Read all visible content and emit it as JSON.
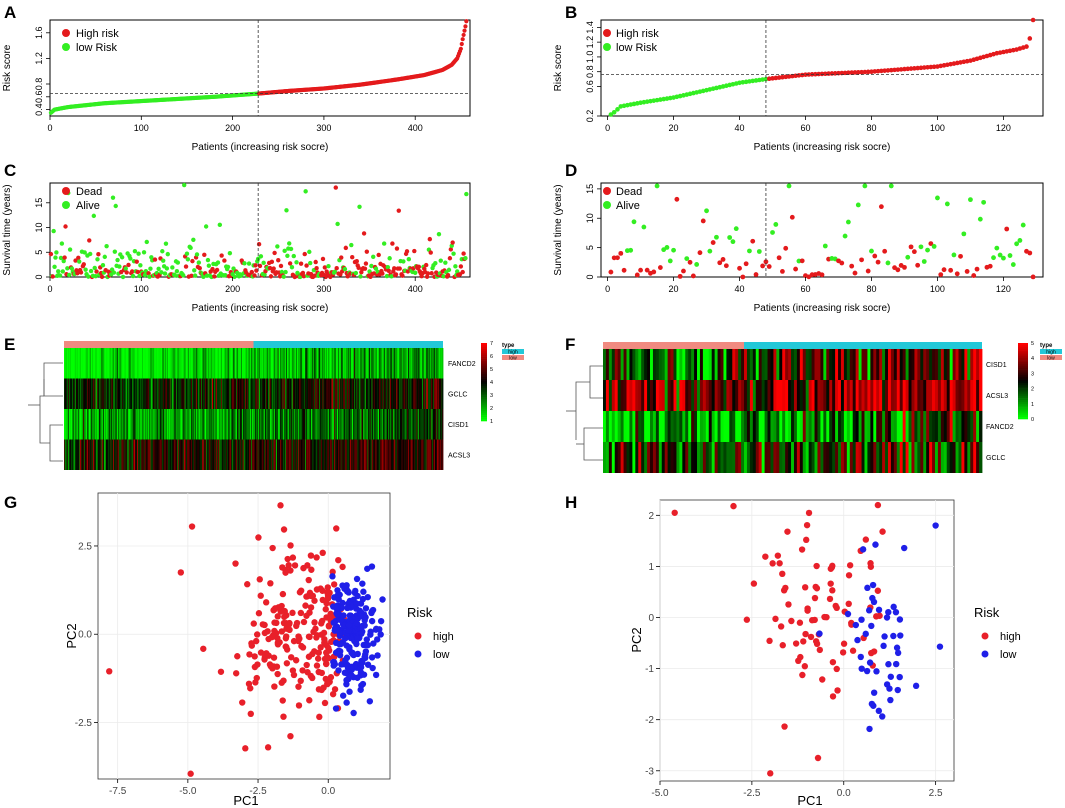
{
  "colors": {
    "high": "#e41a1c",
    "low": "#33ee22",
    "dead": "#e41a1c",
    "alive": "#33ee22",
    "pca_high": "#e8202a",
    "pca_low": "#1f1fe8",
    "type_high": "#22c8d8",
    "type_low": "#f08a80"
  },
  "panels": {
    "A": {
      "label": "A",
      "legend": [
        "High risk",
        "low Risk"
      ]
    },
    "B": {
      "label": "B",
      "legend": [
        "High risk",
        "low Risk"
      ]
    },
    "C": {
      "label": "C",
      "legend": [
        "Dead",
        "Alive"
      ]
    },
    "D": {
      "label": "D",
      "legend": [
        "Dead",
        "Alive"
      ]
    },
    "E": {
      "label": "E",
      "legend_title": "type",
      "legend_entries": [
        "high",
        "low"
      ]
    },
    "F": {
      "label": "F",
      "legend_title": "type",
      "legend_entries": [
        "high",
        "low"
      ]
    },
    "G": {
      "label": "G",
      "legend_title": "Risk",
      "legend_entries": [
        "high",
        "low"
      ]
    },
    "H": {
      "label": "H",
      "legend_title": "Risk",
      "legend_entries": [
        "high",
        "low"
      ]
    }
  },
  "chart_data": [
    {
      "id": "A",
      "type": "scatter",
      "title": "",
      "xlabel": "Patients (increasing risk socre)",
      "ylabel": "Risk score",
      "xlim": [
        0,
        460
      ],
      "ylim": [
        0.3,
        1.8
      ],
      "xticks": [
        "0",
        "100",
        "200",
        "300",
        "400"
      ],
      "yticks": [
        "0.4",
        "0.6",
        "0.8",
        "1.2",
        "1.6"
      ],
      "n": 456,
      "cutoff_index": 228,
      "cutoff_score": 0.65,
      "anchors_x": [
        1,
        5,
        20,
        60,
        120,
        180,
        228,
        260,
        300,
        340,
        380,
        410,
        430,
        440,
        446,
        450,
        452,
        455,
        456
      ],
      "anchors_y": [
        0.35,
        0.4,
        0.44,
        0.5,
        0.55,
        0.6,
        0.65,
        0.69,
        0.73,
        0.79,
        0.87,
        0.94,
        1.02,
        1.1,
        1.2,
        1.35,
        1.5,
        1.7,
        1.78
      ]
    },
    {
      "id": "B",
      "type": "scatter",
      "title": "",
      "xlabel": "Patients (increasing risk socre)",
      "ylabel": "Risk score",
      "xlim": [
        -2,
        132
      ],
      "ylim": [
        0.2,
        1.5
      ],
      "xticks": [
        "0",
        "20",
        "40",
        "60",
        "80",
        "100",
        "120"
      ],
      "yticks": [
        "0.2",
        "0.6",
        "0.8",
        "1.0",
        "1.2",
        "1.4"
      ],
      "n": 129,
      "cutoff_index": 48,
      "cutoff_score": 0.76,
      "anchors_x": [
        1,
        2,
        4,
        10,
        20,
        30,
        40,
        48,
        60,
        80,
        100,
        110,
        118,
        124,
        127,
        128,
        129
      ],
      "anchors_y": [
        0.22,
        0.25,
        0.33,
        0.38,
        0.45,
        0.55,
        0.65,
        0.7,
        0.76,
        0.8,
        0.87,
        0.95,
        1.05,
        1.1,
        1.14,
        1.25,
        1.5
      ]
    },
    {
      "id": "C",
      "type": "scatter",
      "title": "",
      "xlabel": "Patients (increasing risk socre)",
      "ylabel": "Survival time (years)",
      "xlim": [
        0,
        460
      ],
      "ylim": [
        0,
        19
      ],
      "xticks": [
        "0",
        "100",
        "200",
        "300",
        "400"
      ],
      "yticks": [
        "0",
        "5",
        "10",
        "15"
      ],
      "n": 456,
      "cutoff_index": 228,
      "seed": 7
    },
    {
      "id": "D",
      "type": "scatter",
      "title": "",
      "xlabel": "Patients (increasing risk socre)",
      "ylabel": "Survival time (years)",
      "xlim": [
        -2,
        132
      ],
      "ylim": [
        0,
        16
      ],
      "xticks": [
        "0",
        "20",
        "40",
        "60",
        "80",
        "100",
        "120"
      ],
      "yticks": [
        "0",
        "5",
        "10",
        "15"
      ],
      "n": 129,
      "cutoff_index": 48,
      "seed": 11
    },
    {
      "id": "E",
      "type": "heatmap",
      "rows": [
        "FANCD2",
        "GCLC",
        "CISD1",
        "ACSL3"
      ],
      "scale_ticks": [
        "1",
        "2",
        "3",
        "4",
        "5",
        "6",
        "7"
      ],
      "n_cols": 456,
      "low_fraction": 0.5,
      "row_means": [
        1.5,
        3.8,
        2.5,
        4.3
      ],
      "seed": 3
    },
    {
      "id": "F",
      "type": "heatmap",
      "rows": [
        "CISD1",
        "ACSL3",
        "FANCD2",
        "GCLC"
      ],
      "scale_ticks": [
        "0",
        "1",
        "2",
        "3",
        "4",
        "5"
      ],
      "n_cols": 129,
      "low_fraction": 0.37,
      "row_means": [
        2.8,
        3.9,
        1.2,
        2.4
      ],
      "seed": 5
    },
    {
      "id": "G",
      "type": "scatter",
      "xlabel": "PC1",
      "ylabel": "PC2",
      "xlim": [
        -8.2,
        2.2
      ],
      "ylim": [
        -4.1,
        4.0
      ],
      "xticks": [
        "-7.5",
        "-5.0",
        "-2.5",
        "0.0"
      ],
      "yticks": [
        "-2.5",
        "0.0",
        "2.5"
      ],
      "series": [
        {
          "name": "high",
          "n": 228,
          "seed": 21
        },
        {
          "name": "low",
          "n": 228,
          "seed": 22
        }
      ],
      "outliers": [
        [
          -7.8,
          -1.05
        ],
        [
          -4.9,
          -3.95
        ],
        [
          -4.85,
          3.05
        ],
        [
          -1.7,
          3.65
        ],
        [
          -5.25,
          1.75
        ]
      ]
    },
    {
      "id": "H",
      "type": "scatter",
      "xlabel": "PC1",
      "ylabel": "PC2",
      "xlim": [
        -5.0,
        3.0
      ],
      "ylim": [
        -3.2,
        2.3
      ],
      "xticks": [
        "-5.0",
        "-2.5",
        "0.0",
        "2.5"
      ],
      "yticks": [
        "-3",
        "-2",
        "-1",
        "0",
        "1",
        "2"
      ],
      "series": [
        {
          "name": "high",
          "n": 81,
          "seed": 31
        },
        {
          "name": "low",
          "n": 48,
          "seed": 32
        }
      ],
      "outliers": [
        [
          -4.6,
          2.05
        ],
        [
          -3.0,
          2.18
        ],
        [
          -2.0,
          -3.05
        ],
        [
          -0.7,
          -2.75
        ],
        [
          2.5,
          1.8
        ]
      ]
    }
  ]
}
